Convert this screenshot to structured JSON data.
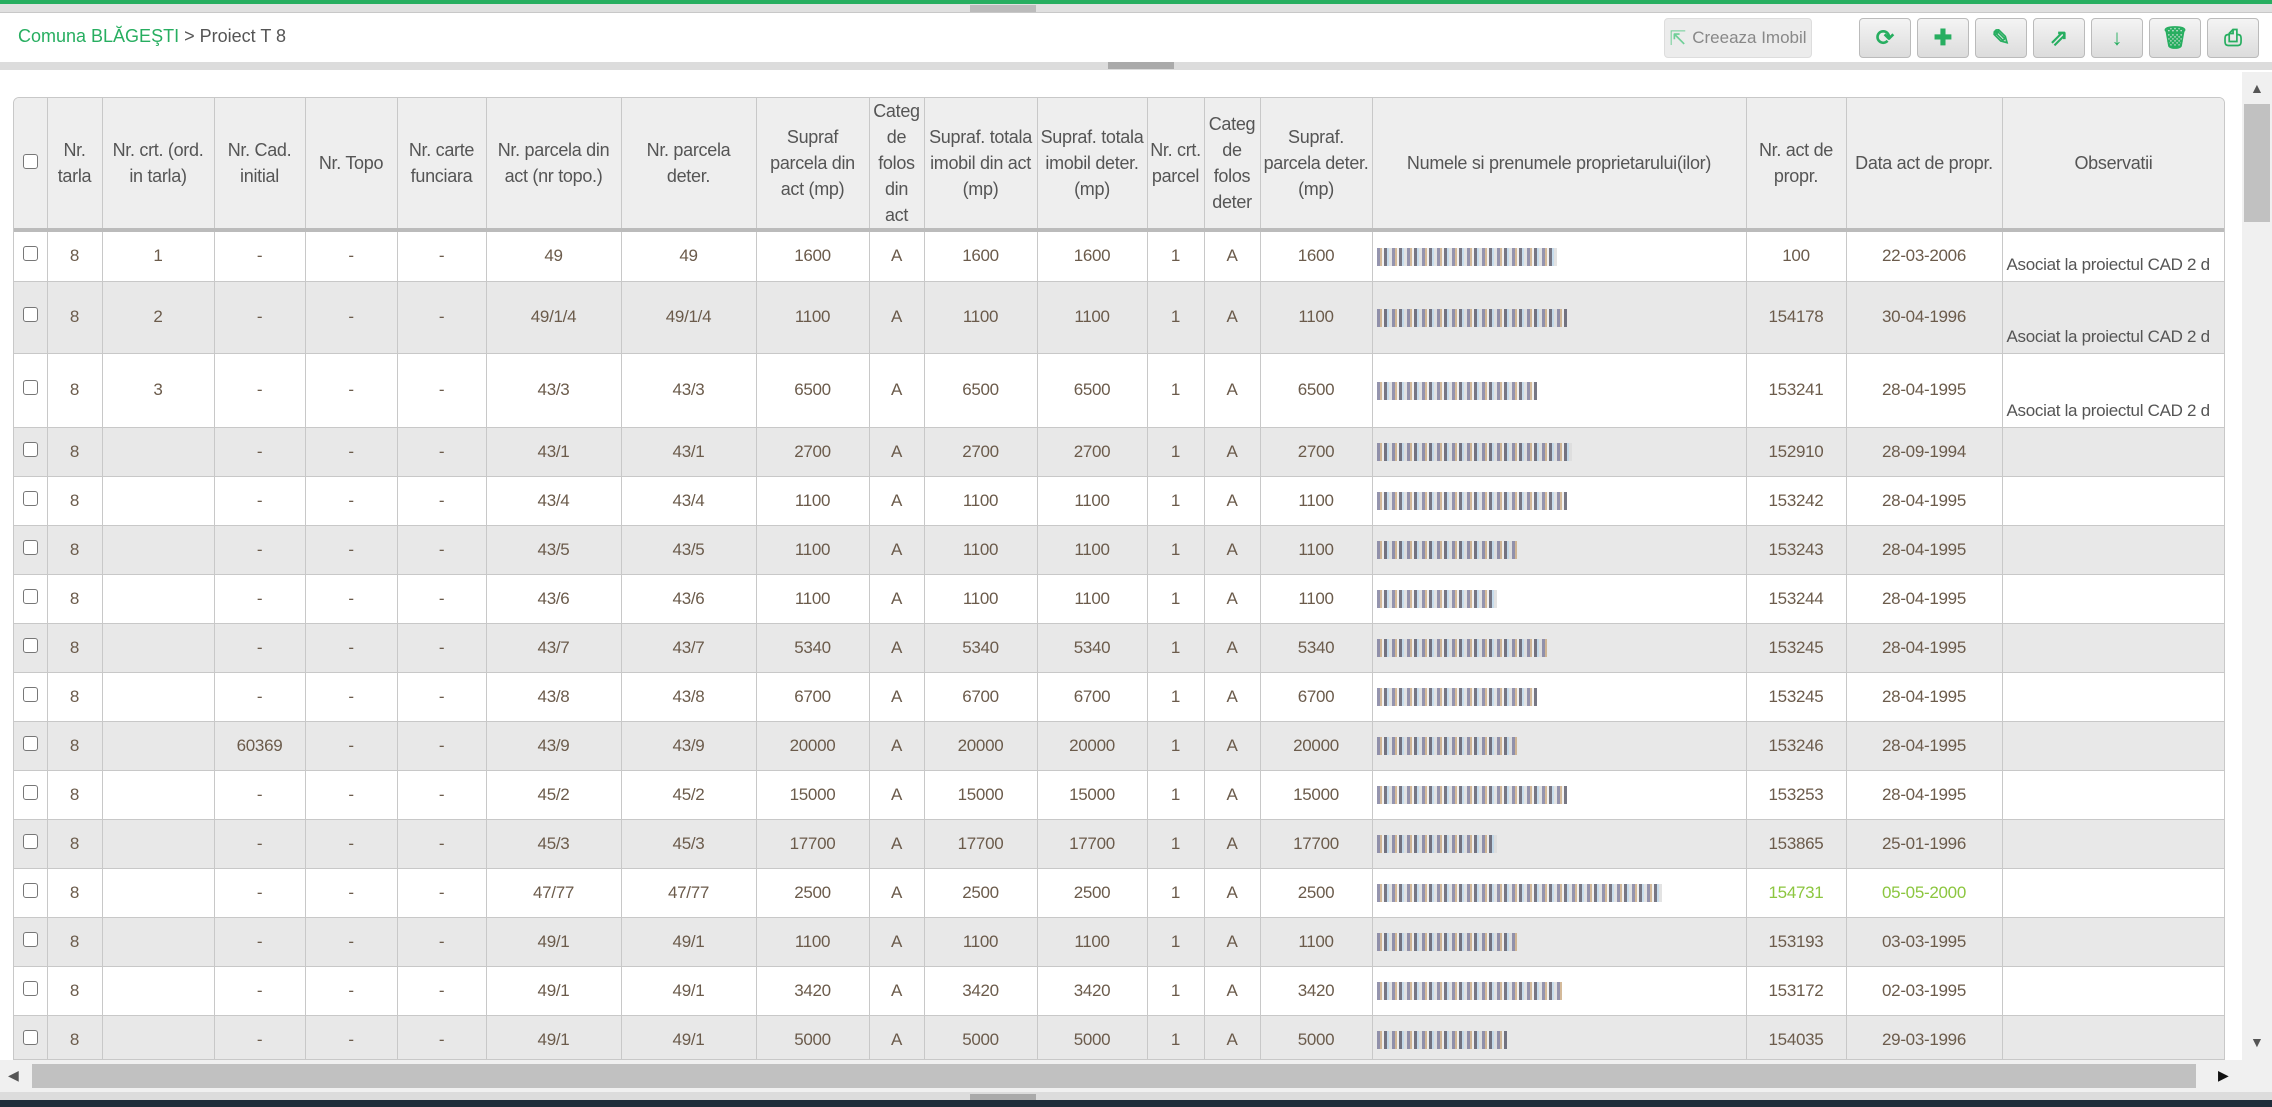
{
  "breadcrumb": {
    "home": "Comuna BLĂGEŞTI",
    "separator": ">",
    "current": "Proiect T 8"
  },
  "toolbar": {
    "create_label": "Creeaza Imobil",
    "buttons": [
      {
        "name": "refresh",
        "glyph": "⟳"
      },
      {
        "name": "add",
        "glyph": "✚"
      },
      {
        "name": "edit",
        "glyph": "✎"
      },
      {
        "name": "export",
        "glyph": "⇗"
      },
      {
        "name": "sort",
        "glyph": "↓"
      },
      {
        "name": "delete",
        "glyph": "🗑"
      },
      {
        "name": "pdf",
        "glyph": "⎙"
      }
    ]
  },
  "colors": {
    "accent": "#27ae60",
    "highlight_text": "#8cc63f",
    "row_alt": "#e8e8e8"
  },
  "table": {
    "columns": [
      "Nr. tarla",
      "Nr. crt. (ord. in tarla)",
      "Nr. Cad. initial",
      "Nr. Topo",
      "Nr. carte funciara",
      "Nr. parcela din act (nr topo.)",
      "Nr. parcela deter.",
      "Supraf parcela din act (mp)",
      "Categ de folos din act",
      "Supraf. totala imobil din act (mp)",
      "Supraf. totala imobil deter. (mp)",
      "Nr. crt. parcel",
      "Categ de folos deter",
      "Supraf. parcela deter. (mp)",
      "Numele si prenumele proprietarului(ilor)",
      "Nr. act de propr.",
      "Data act de propr.",
      "Observatii"
    ],
    "rows": [
      {
        "c": [
          "8",
          "1",
          "-",
          "-",
          "-",
          "49",
          "49",
          "1600",
          "A",
          "1600",
          "1600",
          "1",
          "A",
          "1600",
          "",
          "100",
          "22-03-2006",
          "Asociat la proiectul CAD 2 d"
        ]
      },
      {
        "c": [
          "8",
          "2",
          "-",
          "-",
          "-",
          "49/1/4",
          "49/1/4",
          "1100",
          "A",
          "1100",
          "1100",
          "1",
          "A",
          "1100",
          "",
          "154178",
          "30-04-1996",
          "Asociat la proiectul CAD 2 d"
        ]
      },
      {
        "c": [
          "8",
          "3",
          "-",
          "-",
          "-",
          "43/3",
          "43/3",
          "6500",
          "A",
          "6500",
          "6500",
          "1",
          "A",
          "6500",
          "",
          "153241",
          "28-04-1995",
          "Asociat la proiectul CAD 2 d"
        ]
      },
      {
        "c": [
          "8",
          "",
          "-",
          "-",
          "-",
          "43/1",
          "43/1",
          "2700",
          "A",
          "2700",
          "2700",
          "1",
          "A",
          "2700",
          "",
          "152910",
          "28-09-1994",
          ""
        ]
      },
      {
        "c": [
          "8",
          "",
          "-",
          "-",
          "-",
          "43/4",
          "43/4",
          "1100",
          "A",
          "1100",
          "1100",
          "1",
          "A",
          "1100",
          "",
          "153242",
          "28-04-1995",
          ""
        ]
      },
      {
        "c": [
          "8",
          "",
          "-",
          "-",
          "-",
          "43/5",
          "43/5",
          "1100",
          "A",
          "1100",
          "1100",
          "1",
          "A",
          "1100",
          "",
          "153243",
          "28-04-1995",
          ""
        ]
      },
      {
        "c": [
          "8",
          "",
          "-",
          "-",
          "-",
          "43/6",
          "43/6",
          "1100",
          "A",
          "1100",
          "1100",
          "1",
          "A",
          "1100",
          "",
          "153244",
          "28-04-1995",
          ""
        ]
      },
      {
        "c": [
          "8",
          "",
          "-",
          "-",
          "-",
          "43/7",
          "43/7",
          "5340",
          "A",
          "5340",
          "5340",
          "1",
          "A",
          "5340",
          "",
          "153245",
          "28-04-1995",
          ""
        ]
      },
      {
        "c": [
          "8",
          "",
          "-",
          "-",
          "-",
          "43/8",
          "43/8",
          "6700",
          "A",
          "6700",
          "6700",
          "1",
          "A",
          "6700",
          "",
          "153245",
          "28-04-1995",
          ""
        ]
      },
      {
        "c": [
          "8",
          "",
          "60369",
          "-",
          "-",
          "43/9",
          "43/9",
          "20000",
          "A",
          "20000",
          "20000",
          "1",
          "A",
          "20000",
          "",
          "153246",
          "28-04-1995",
          ""
        ]
      },
      {
        "c": [
          "8",
          "",
          "-",
          "-",
          "-",
          "45/2",
          "45/2",
          "15000",
          "A",
          "15000",
          "15000",
          "1",
          "A",
          "15000",
          "",
          "153253",
          "28-04-1995",
          ""
        ]
      },
      {
        "c": [
          "8",
          "",
          "-",
          "-",
          "-",
          "45/3",
          "45/3",
          "17700",
          "A",
          "17700",
          "17700",
          "1",
          "A",
          "17700",
          "",
          "153865",
          "25-01-1996",
          ""
        ]
      },
      {
        "c": [
          "8",
          "",
          "-",
          "-",
          "-",
          "47/77",
          "47/77",
          "2500",
          "A",
          "2500",
          "2500",
          "1",
          "A",
          "2500",
          "",
          "154731",
          "05-05-2000",
          ""
        ],
        "highlight": true
      },
      {
        "c": [
          "8",
          "",
          "-",
          "-",
          "-",
          "49/1",
          "49/1",
          "1100",
          "A",
          "1100",
          "1100",
          "1",
          "A",
          "1100",
          "",
          "153193",
          "03-03-1995",
          ""
        ]
      },
      {
        "c": [
          "8",
          "",
          "-",
          "-",
          "-",
          "49/1",
          "49/1",
          "3420",
          "A",
          "3420",
          "3420",
          "1",
          "A",
          "3420",
          "",
          "153172",
          "02-03-1995",
          ""
        ]
      },
      {
        "c": [
          "8",
          "",
          "-",
          "-",
          "-",
          "49/1",
          "49/1",
          "5000",
          "A",
          "5000",
          "5000",
          "1",
          "A",
          "5000",
          "",
          "154035",
          "29-03-1996",
          ""
        ]
      }
    ]
  }
}
